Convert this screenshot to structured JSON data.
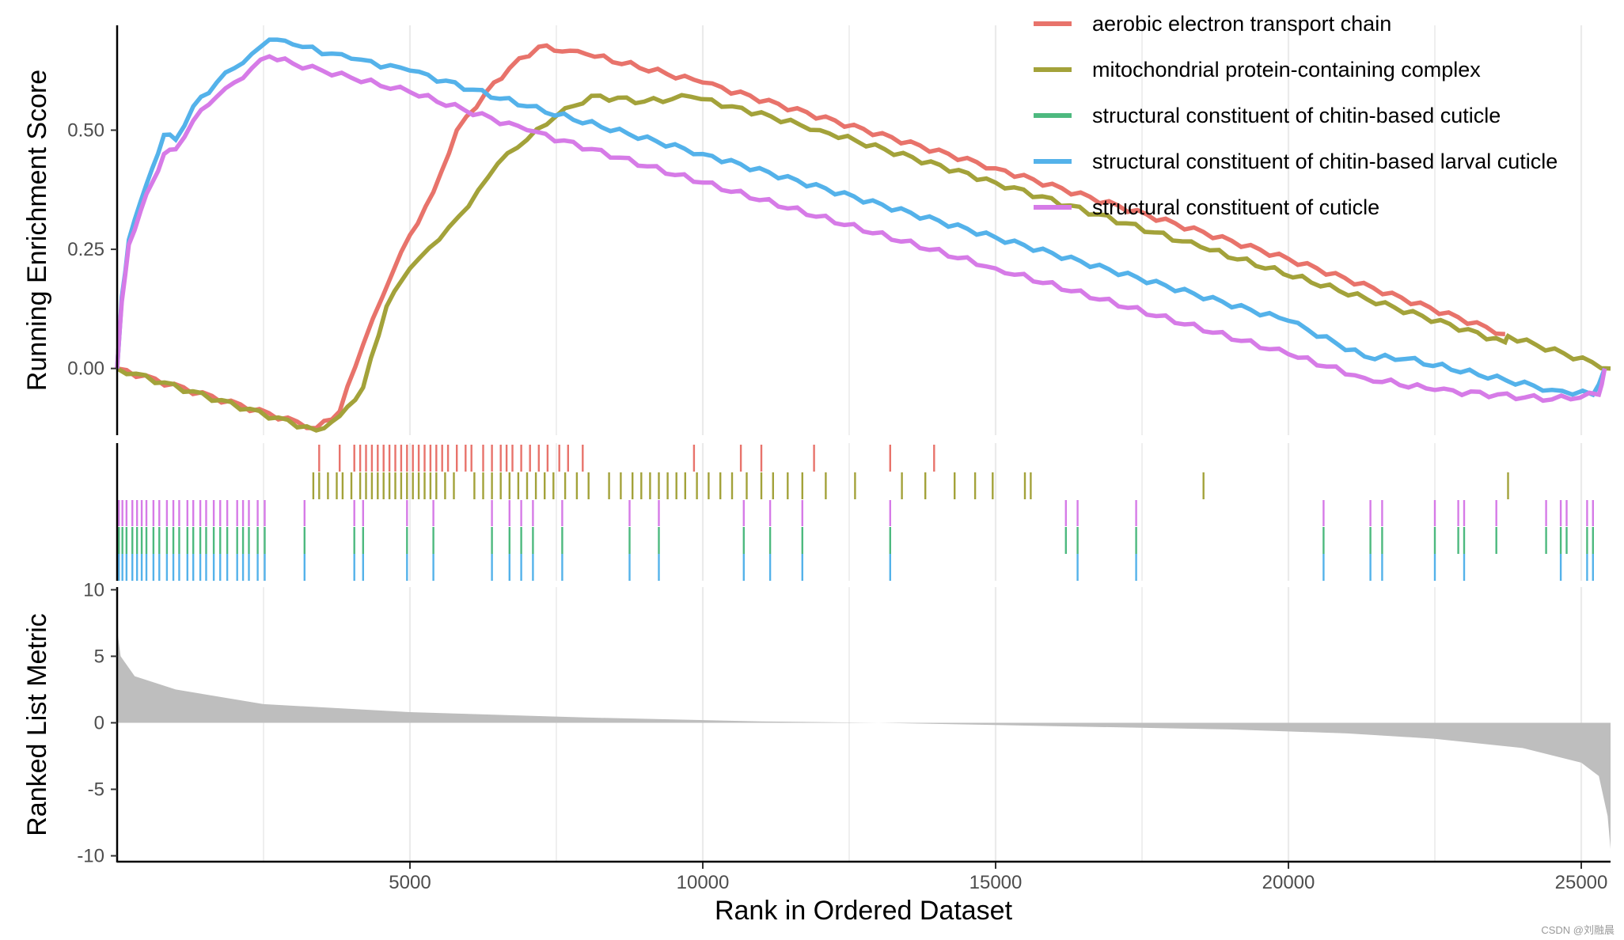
{
  "chart_data": {
    "type": "line",
    "xlabel": "Rank in Ordered Dataset",
    "xlim": [
      0,
      25500
    ],
    "x_ticks": [
      5000,
      10000,
      15000,
      20000,
      25000
    ],
    "x_tick_labels": [
      "5000",
      "10000",
      "15000",
      "20000",
      "25000"
    ],
    "top_panel": {
      "ylabel": "Running Enrichment Score",
      "ylim": [
        -0.14,
        0.72
      ],
      "y_ticks": [
        0.0,
        0.25,
        0.5
      ],
      "y_tick_labels": [
        "0.00",
        "0.25",
        "0.50"
      ]
    },
    "bottom_panel": {
      "ylabel": "Ranked List Metric",
      "ylim": [
        -10.5,
        10.2
      ],
      "y_ticks": [
        -10,
        -5,
        0,
        5,
        10
      ],
      "y_tick_labels": [
        "-10",
        "-5",
        "0",
        "5",
        "10"
      ],
      "metric_curve": [
        [
          0,
          7.0
        ],
        [
          60,
          5.0
        ],
        [
          300,
          3.5
        ],
        [
          1000,
          2.5
        ],
        [
          2500,
          1.4
        ],
        [
          5000,
          0.8
        ],
        [
          8000,
          0.4
        ],
        [
          11000,
          0.1
        ],
        [
          13000,
          0.0
        ],
        [
          16000,
          -0.25
        ],
        [
          19000,
          -0.5
        ],
        [
          21000,
          -0.8
        ],
        [
          22500,
          -1.2
        ],
        [
          24000,
          -1.9
        ],
        [
          25000,
          -3.0
        ],
        [
          25300,
          -4.0
        ],
        [
          25450,
          -7.0
        ],
        [
          25500,
          -9.5
        ]
      ]
    },
    "series": [
      {
        "name": "aerobic electron transport chain",
        "color": "#E8736B",
        "es_points": [
          [
            0,
            0
          ],
          [
            3400,
            -0.125
          ],
          [
            3800,
            -0.09
          ],
          [
            4200,
            0.05
          ],
          [
            4700,
            0.2
          ],
          [
            5000,
            0.28
          ],
          [
            5400,
            0.37
          ],
          [
            5800,
            0.5
          ],
          [
            6300,
            0.58
          ],
          [
            6700,
            0.63
          ],
          [
            7200,
            0.675
          ],
          [
            7600,
            0.665
          ],
          [
            8000,
            0.66
          ],
          [
            10000,
            0.6
          ],
          [
            15000,
            0.42
          ],
          [
            20000,
            0.23
          ],
          [
            23700,
            0.072
          ]
        ],
        "hits": [
          3450,
          3800,
          4050,
          4150,
          4250,
          4350,
          4450,
          4550,
          4650,
          4750,
          4850,
          4950,
          5050,
          5150,
          5250,
          5350,
          5450,
          5550,
          5650,
          5800,
          5950,
          6050,
          6250,
          6400,
          6550,
          6650,
          6750,
          6900,
          7050,
          7200,
          7350,
          7550,
          7700,
          7950,
          9850,
          10650,
          11000,
          11900,
          13200,
          13950
        ]
      },
      {
        "name": "mitochondrial protein-containing complex",
        "color": "#A3A23A",
        "es_points": [
          [
            0,
            0
          ],
          [
            3400,
            -0.13
          ],
          [
            3800,
            -0.1
          ],
          [
            4200,
            -0.04
          ],
          [
            4600,
            0.13
          ],
          [
            5000,
            0.21
          ],
          [
            5500,
            0.27
          ],
          [
            6000,
            0.34
          ],
          [
            6500,
            0.43
          ],
          [
            7000,
            0.48
          ],
          [
            7500,
            0.53
          ],
          [
            8100,
            0.572
          ],
          [
            9000,
            0.56
          ],
          [
            9800,
            0.57
          ],
          [
            10500,
            0.55
          ],
          [
            12000,
            0.5
          ],
          [
            15000,
            0.39
          ],
          [
            18500,
            0.255
          ],
          [
            23700,
            0.055
          ],
          [
            23750,
            0.068
          ],
          [
            25500,
            0.0
          ]
        ],
        "hits": [
          3350,
          3450,
          3600,
          3750,
          3850,
          4000,
          4150,
          4250,
          4350,
          4450,
          4550,
          4650,
          4750,
          4850,
          4950,
          5050,
          5150,
          5250,
          5350,
          5450,
          5600,
          5750,
          6100,
          6250,
          6400,
          6550,
          6700,
          6850,
          7000,
          7150,
          7300,
          7450,
          7650,
          7850,
          8050,
          8400,
          8600,
          8800,
          8950,
          9100,
          9250,
          9400,
          9550,
          9700,
          9900,
          10100,
          10300,
          10500,
          10750,
          11000,
          11200,
          11450,
          11700,
          12100,
          12600,
          13400,
          13800,
          14300,
          14650,
          14950,
          15500,
          15600,
          18550,
          23750
        ]
      },
      {
        "name": "structural constituent of chitin-based cuticle",
        "color": "#4DB97F",
        "es_points": [],
        "hits": [
          30,
          90,
          160,
          260,
          340,
          420,
          500,
          620,
          720,
          850,
          960,
          1060,
          1200,
          1300,
          1420,
          1520,
          1650,
          1760,
          1880,
          2050,
          2150,
          2250,
          2400,
          2520,
          3200,
          4050,
          4200,
          4950,
          5400,
          6400,
          6700,
          6900,
          7100,
          7600,
          8750,
          9250,
          10700,
          11150,
          11700,
          13200,
          16200,
          16400,
          17400,
          20600,
          21400,
          21600,
          22500,
          22900,
          23000,
          23550,
          24400,
          24650,
          24750,
          25100,
          25200
        ]
      },
      {
        "name": "structural constituent of chitin-based larval cuticle",
        "color": "#54B2EA",
        "es_points": [
          [
            0,
            0
          ],
          [
            80,
            0.15
          ],
          [
            200,
            0.27
          ],
          [
            400,
            0.35
          ],
          [
            600,
            0.42
          ],
          [
            800,
            0.49
          ],
          [
            1000,
            0.48
          ],
          [
            1300,
            0.55
          ],
          [
            1700,
            0.6
          ],
          [
            2000,
            0.63
          ],
          [
            2300,
            0.66
          ],
          [
            2600,
            0.69
          ],
          [
            3000,
            0.68
          ],
          [
            4000,
            0.65
          ],
          [
            5000,
            0.625
          ],
          [
            7000,
            0.55
          ],
          [
            10000,
            0.45
          ],
          [
            15000,
            0.275
          ],
          [
            20000,
            0.1
          ],
          [
            21300,
            0.025
          ],
          [
            22000,
            0.02
          ],
          [
            24500,
            -0.045
          ],
          [
            25200,
            -0.055
          ],
          [
            25400,
            0.0
          ]
        ],
        "hits": [
          30,
          90,
          160,
          260,
          340,
          420,
          500,
          620,
          720,
          850,
          960,
          1060,
          1200,
          1300,
          1420,
          1520,
          1650,
          1760,
          1880,
          2050,
          2150,
          2250,
          2400,
          2520,
          3200,
          4050,
          4200,
          4950,
          5400,
          6400,
          6700,
          6900,
          7100,
          7600,
          8750,
          9250,
          10700,
          11150,
          11700,
          13200,
          16400,
          17400,
          20600,
          21400,
          21600,
          22500,
          23000,
          24650,
          25100,
          25200
        ]
      },
      {
        "name": "structural constituent of cuticle",
        "color": "#D67BE7",
        "es_points": [
          [
            0,
            0
          ],
          [
            80,
            0.14
          ],
          [
            200,
            0.26
          ],
          [
            400,
            0.33
          ],
          [
            600,
            0.39
          ],
          [
            800,
            0.45
          ],
          [
            1000,
            0.46
          ],
          [
            1300,
            0.52
          ],
          [
            1700,
            0.57
          ],
          [
            2000,
            0.6
          ],
          [
            2300,
            0.63
          ],
          [
            2600,
            0.655
          ],
          [
            3000,
            0.64
          ],
          [
            4000,
            0.61
          ],
          [
            5000,
            0.58
          ],
          [
            7000,
            0.5
          ],
          [
            10000,
            0.39
          ],
          [
            15000,
            0.21
          ],
          [
            20000,
            0.03
          ],
          [
            21300,
            -0.02
          ],
          [
            22500,
            -0.045
          ],
          [
            24500,
            -0.065
          ],
          [
            25300,
            -0.055
          ],
          [
            25400,
            0.0
          ]
        ],
        "hits": [
          30,
          90,
          160,
          260,
          340,
          420,
          500,
          620,
          720,
          850,
          960,
          1060,
          1200,
          1300,
          1420,
          1520,
          1650,
          1760,
          1880,
          2050,
          2150,
          2250,
          2400,
          2520,
          3200,
          4050,
          4200,
          4950,
          5400,
          6400,
          6700,
          6900,
          7100,
          7600,
          8750,
          9250,
          10700,
          11150,
          11700,
          13200,
          16200,
          16400,
          17400,
          20600,
          21400,
          21600,
          22500,
          22900,
          23000,
          23550,
          24400,
          24650,
          24750,
          25100,
          25200
        ]
      }
    ]
  },
  "watermark": "CSDN @刘融晨"
}
